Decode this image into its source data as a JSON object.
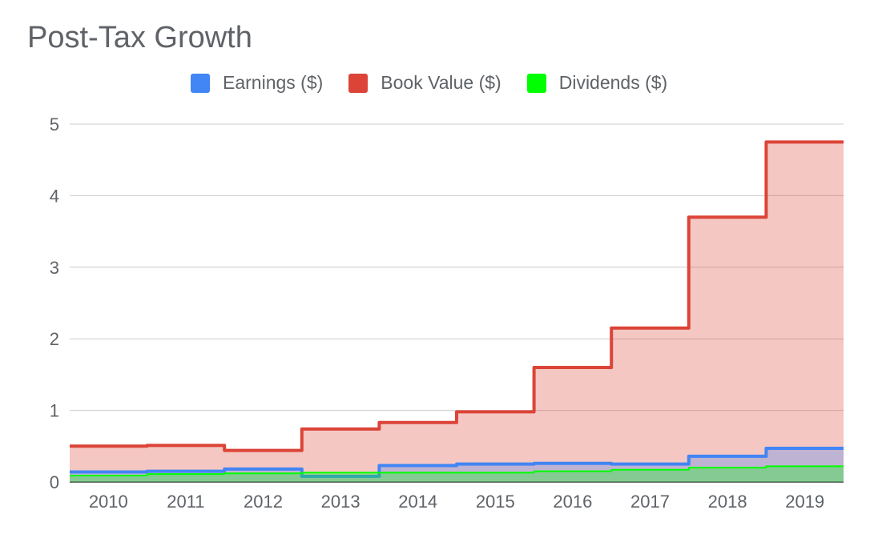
{
  "chart_data": {
    "type": "area",
    "title": "Post-Tax Growth",
    "step": true,
    "xlabel": "",
    "ylabel": "",
    "categories": [
      "2010",
      "2011",
      "2012",
      "2013",
      "2014",
      "2015",
      "2016",
      "2017",
      "2018",
      "2019"
    ],
    "ylim": [
      0,
      5
    ],
    "yticks": [
      0,
      1,
      2,
      3,
      4,
      5
    ],
    "grid": true,
    "legend_position": "top",
    "series": [
      {
        "name": "Earnings ($)",
        "color": "#4285f4",
        "values": [
          0.14,
          0.15,
          0.18,
          0.08,
          0.23,
          0.25,
          0.26,
          0.25,
          0.36,
          0.47
        ]
      },
      {
        "name": "Book Value ($)",
        "color": "#db4437",
        "values": [
          0.5,
          0.51,
          0.44,
          0.74,
          0.83,
          0.98,
          1.6,
          2.15,
          3.7,
          4.75
        ]
      },
      {
        "name": "Dividends ($)",
        "color": "#00ff00",
        "values": [
          0.09,
          0.11,
          0.12,
          0.13,
          0.13,
          0.13,
          0.15,
          0.17,
          0.2,
          0.22
        ]
      }
    ]
  }
}
